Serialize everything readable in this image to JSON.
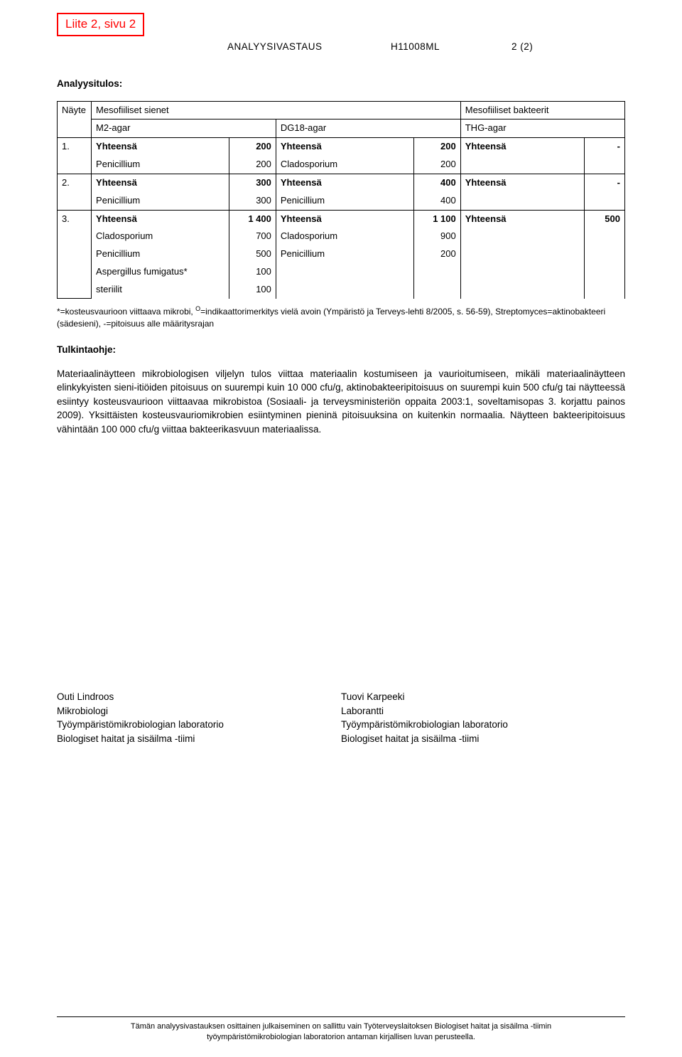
{
  "stamp": "Liite 2, sivu 2",
  "header": {
    "title": "ANALYYSIVASTAUS",
    "code": "H11008ML",
    "page": "2 (2)"
  },
  "results_heading": "Analyysitulos:",
  "table": {
    "columns": {
      "sample": "Näyte",
      "fungi": "Mesofiiliset sienet",
      "fungi_m2": "M2-agar",
      "fungi_dg18": "DG18-agar",
      "bacteria": "Mesofiiliset bakteerit",
      "bacteria_thg": "THG-agar"
    },
    "rows": [
      {
        "n": "1.",
        "m2": [
          {
            "label": "Yhteensä",
            "value": "200",
            "bold": true
          },
          {
            "label": "Penicillium",
            "value": "200"
          }
        ],
        "dg18": [
          {
            "label": "Yhteensä",
            "value": "200",
            "bold": true
          },
          {
            "label": "Cladosporium",
            "value": "200"
          }
        ],
        "thg": [
          {
            "label": "Yhteensä",
            "value": "-",
            "bold": true
          },
          {
            "label": "",
            "value": ""
          }
        ]
      },
      {
        "n": "2.",
        "m2": [
          {
            "label": "Yhteensä",
            "value": "300",
            "bold": true
          },
          {
            "label": "Penicillium",
            "value": "300"
          }
        ],
        "dg18": [
          {
            "label": "Yhteensä",
            "value": "400",
            "bold": true
          },
          {
            "label": "Penicillium",
            "value": "400"
          }
        ],
        "thg": [
          {
            "label": "Yhteensä",
            "value": "-",
            "bold": true
          },
          {
            "label": "",
            "value": ""
          }
        ]
      },
      {
        "n": "3.",
        "m2": [
          {
            "label": "Yhteensä",
            "value": "1 400",
            "bold": true
          },
          {
            "label": "Cladosporium",
            "value": "700"
          },
          {
            "label": "Penicillium",
            "value": "500"
          },
          {
            "label": "Aspergillus fumigatus*",
            "value": "100"
          },
          {
            "label": "steriilit",
            "value": "100"
          }
        ],
        "dg18": [
          {
            "label": "Yhteensä",
            "value": "1 100",
            "bold": true
          },
          {
            "label": "Cladosporium",
            "value": "900"
          },
          {
            "label": "Penicillium",
            "value": "200"
          },
          {
            "label": "",
            "value": ""
          },
          {
            "label": "",
            "value": ""
          }
        ],
        "thg": [
          {
            "label": "Yhteensä",
            "value": "500",
            "bold": true
          },
          {
            "label": "",
            "value": ""
          },
          {
            "label": "",
            "value": ""
          },
          {
            "label": "",
            "value": ""
          },
          {
            "label": "",
            "value": ""
          }
        ]
      }
    ]
  },
  "footnote_pre": "*=kosteusvaurioon viittaava mikrobi, ",
  "footnote_sup": "O",
  "footnote_post": "=indikaattorimerkitys vielä avoin (Ympäristö ja Terveys-lehti 8/2005, s. 56-59), Streptomyces=aktinobakteeri (sädesieni), -=pitoisuus alle määritysrajan",
  "interp_heading": "Tulkintaohje:",
  "interp_body": "Materiaalinäytteen mikrobiologisen viljelyn tulos viittaa materiaalin kostumiseen ja vaurioitumiseen, mikäli materiaalinäytteen elinkykyisten sieni-itiöiden pitoisuus on suurempi kuin 10 000 cfu/g, aktinobakteeripitoisuus on suurempi kuin 500 cfu/g tai näytteessä esiintyy kosteusvaurioon viittaavaa mikrobistoa (Sosiaali- ja terveysministeriön oppaita 2003:1, soveltamisopas 3. korjattu painos 2009). Yksittäisten kosteusvauriomikrobien esiintyminen pieninä pitoisuuksina on kuitenkin normaalia. Näytteen bakteeripitoisuus vähintään 100 000 cfu/g viittaa bakteerikasvuun materiaalissa.",
  "signatures": {
    "left": [
      "Outi Lindroos",
      "Mikrobiologi",
      "Työympäristömikrobiologian laboratorio",
      "Biologiset haitat ja sisäilma -tiimi"
    ],
    "right": [
      "Tuovi Karpeeki",
      "Laborantti",
      "Työympäristömikrobiologian laboratorio",
      "Biologiset haitat ja sisäilma -tiimi"
    ]
  },
  "footer": {
    "line1": "Tämän analyysivastauksen osittainen julkaiseminen on sallittu vain Työterveyslaitoksen Biologiset haitat ja sisäilma -tiimin",
    "line2": "työympäristömikrobiologian laboratorion antaman kirjallisen luvan perusteella."
  }
}
